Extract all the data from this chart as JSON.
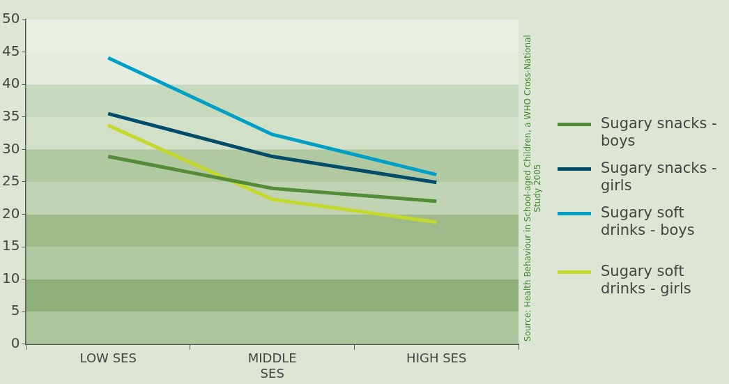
{
  "chart_data": {
    "type": "line",
    "categories": [
      "LOW SES",
      "MIDDLE SES",
      "HIGH SES"
    ],
    "series": [
      {
        "name": "Sugary snacks - boys",
        "color": "#548b36",
        "values": [
          28.9,
          24.0,
          22.0
        ]
      },
      {
        "name": "Sugary snacks - girls",
        "color": "#004d6b",
        "values": [
          35.5,
          28.9,
          24.9
        ]
      },
      {
        "name": "Sugary soft drinks - boys",
        "color": "#00a0c6",
        "values": [
          44.1,
          32.3,
          26.1
        ]
      },
      {
        "name": "Sugary soft drinks - girls",
        "color": "#c5d82e",
        "values": [
          33.7,
          22.3,
          18.8
        ]
      }
    ],
    "ylim": [
      0,
      50
    ],
    "yticks": [
      0,
      5,
      10,
      15,
      20,
      25,
      30,
      35,
      40,
      45,
      50
    ],
    "grid": false,
    "legend": "right",
    "marker": "none",
    "line_style": "solid",
    "bands": [
      {
        "axis": "y",
        "from": 0,
        "to": 5,
        "color": "#abc59d"
      },
      {
        "axis": "y",
        "from": 5,
        "to": 10,
        "color": "#8eb07b"
      },
      {
        "axis": "y",
        "from": 10,
        "to": 15,
        "color": "#b1c9a3"
      },
      {
        "axis": "y",
        "from": 15,
        "to": 20,
        "color": "#9eba8b"
      },
      {
        "axis": "y",
        "from": 20,
        "to": 25,
        "color": "#c0d3b3"
      },
      {
        "axis": "y",
        "from": 25,
        "to": 30,
        "color": "#b1c9a0"
      },
      {
        "axis": "y",
        "from": 30,
        "to": 35,
        "color": "#d3e0c8"
      },
      {
        "axis": "y",
        "from": 35,
        "to": 40,
        "color": "#c7d9bc"
      },
      {
        "axis": "y",
        "from": 40,
        "to": 45,
        "color": "#e5ede0"
      },
      {
        "axis": "y",
        "from": 45,
        "to": 50,
        "color": "#eaf0e6"
      }
    ],
    "annotations": [
      "Source: Health Behaviour in School-aged Children, a WHO Cross-National Study 2005"
    ]
  }
}
